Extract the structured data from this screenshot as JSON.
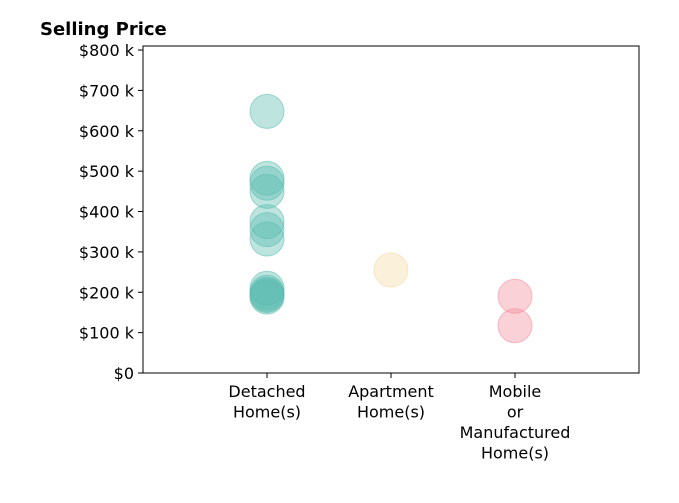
{
  "chart_data": {
    "type": "scatter",
    "title": "Selling Price",
    "xlabel": "",
    "ylabel": "",
    "categories": [
      [
        "Detached",
        "Home(s)"
      ],
      [
        "Apartment",
        "Home(s)"
      ],
      [
        "Mobile",
        "or",
        "Manufactured",
        "Home(s)"
      ]
    ],
    "ylim": [
      0,
      810000
    ],
    "yticks": [
      {
        "value": 0,
        "label": "$0"
      },
      {
        "value": 100000,
        "label": "$100 k"
      },
      {
        "value": 200000,
        "label": "$200 k"
      },
      {
        "value": 300000,
        "label": "$300 k"
      },
      {
        "value": 400000,
        "label": "$400 k"
      },
      {
        "value": 500000,
        "label": "$500 k"
      },
      {
        "value": 600000,
        "label": "$600 k"
      },
      {
        "value": 700000,
        "label": "$700 k"
      },
      {
        "value": 800000,
        "label": "$800 k"
      }
    ],
    "grid": false,
    "series": [
      {
        "category_index": 0,
        "color": "#5bbcb0",
        "values": [
          648000,
          482000,
          470000,
          450000,
          375000,
          355000,
          332000,
          210000,
          200000,
          195000,
          192000,
          188000
        ]
      },
      {
        "category_index": 1,
        "color": "#f6d9a3",
        "values": [
          255000
        ]
      },
      {
        "category_index": 2,
        "color": "#f28c9a",
        "values": [
          190000,
          117000
        ]
      }
    ]
  }
}
